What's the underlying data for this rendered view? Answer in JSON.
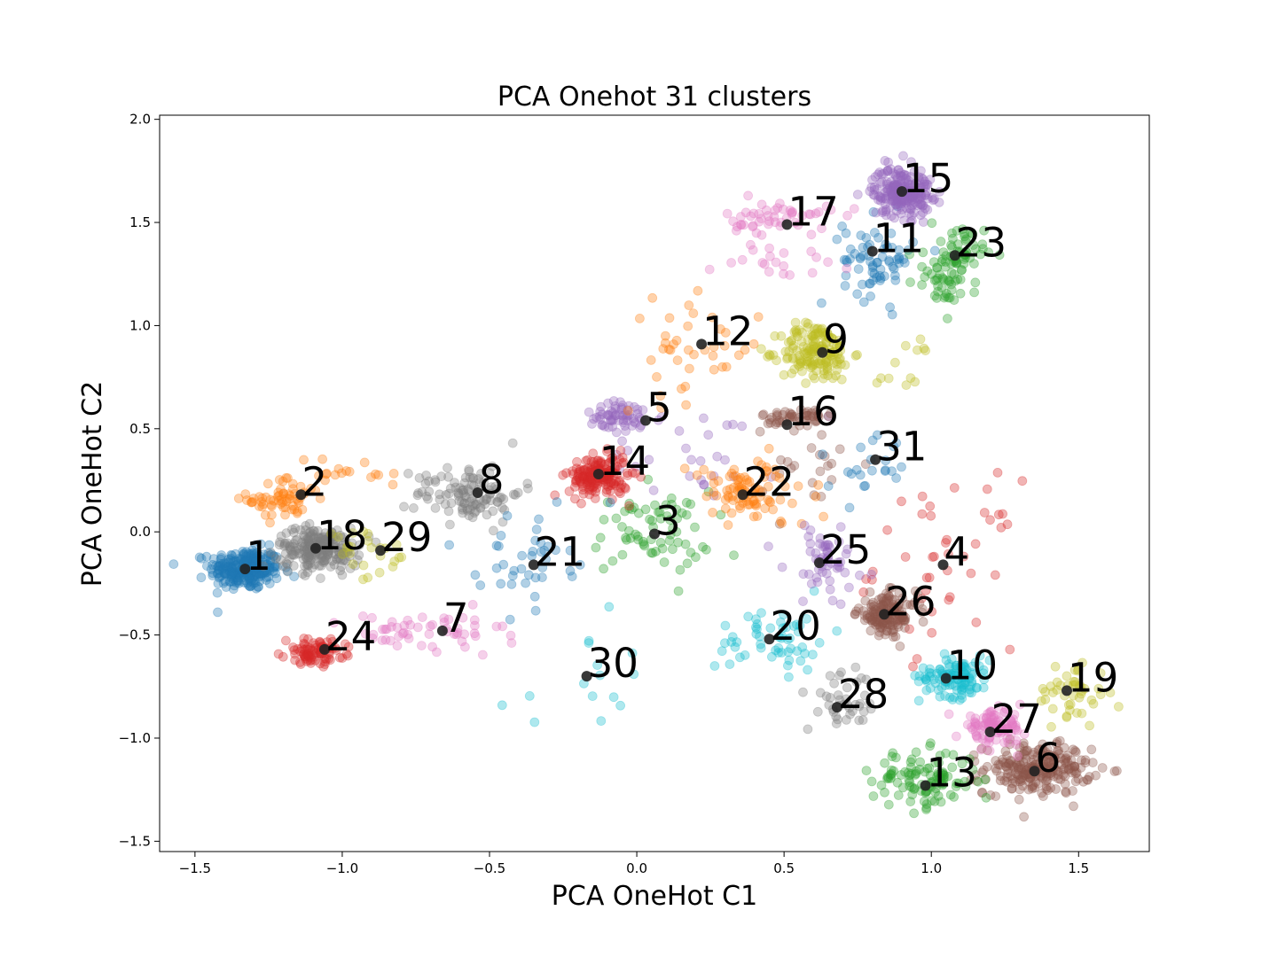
{
  "chart_data": {
    "type": "scatter",
    "title": "PCA Onehot 31 clusters",
    "xlabel": "PCA OneHot C1",
    "ylabel": "PCA OneHot C2",
    "xlim": [
      -1.62,
      1.74
    ],
    "ylim": [
      -1.55,
      2.02
    ],
    "xticks": [
      -1.5,
      -1.0,
      -0.5,
      0.0,
      0.5,
      1.0,
      1.5
    ],
    "xtick_labels": [
      "−1.5",
      "−1.0",
      "−0.5",
      "0.0",
      "0.5",
      "1.0",
      "1.5"
    ],
    "yticks": [
      -1.5,
      -1.0,
      -0.5,
      0.0,
      0.5,
      1.0,
      1.5,
      2.0
    ],
    "ytick_labels": [
      "−1.5",
      "−1.0",
      "−0.5",
      "0.0",
      "0.5",
      "1.0",
      "1.5",
      "2.0"
    ],
    "grid": false,
    "legend": "none",
    "point_alpha": 0.35,
    "centroid_color": "#222222",
    "palette": [
      "#1f77b4",
      "#ff7f0e",
      "#2ca02c",
      "#d62728",
      "#9467bd",
      "#8c564b",
      "#e377c2",
      "#7f7f7f",
      "#bcbd22",
      "#17becf"
    ],
    "centroids": [
      {
        "label": "1",
        "x": -1.33,
        "y": -0.18,
        "color": "#1f77b4"
      },
      {
        "label": "2",
        "x": -1.14,
        "y": 0.18,
        "color": "#ff7f0e"
      },
      {
        "label": "3",
        "x": 0.06,
        "y": -0.01,
        "color": "#2ca02c"
      },
      {
        "label": "4",
        "x": 1.04,
        "y": -0.16,
        "color": "#d62728"
      },
      {
        "label": "5",
        "x": 0.03,
        "y": 0.54,
        "color": "#9467bd"
      },
      {
        "label": "6",
        "x": 1.35,
        "y": -1.16,
        "color": "#8c564b"
      },
      {
        "label": "7",
        "x": -0.66,
        "y": -0.48,
        "color": "#e377c2"
      },
      {
        "label": "8",
        "x": -0.54,
        "y": 0.19,
        "color": "#7f7f7f"
      },
      {
        "label": "9",
        "x": 0.63,
        "y": 0.87,
        "color": "#bcbd22"
      },
      {
        "label": "10",
        "x": 1.05,
        "y": -0.71,
        "color": "#17becf"
      },
      {
        "label": "11",
        "x": 0.8,
        "y": 1.36,
        "color": "#1f77b4"
      },
      {
        "label": "12",
        "x": 0.22,
        "y": 0.91,
        "color": "#ff7f0e"
      },
      {
        "label": "13",
        "x": 0.98,
        "y": -1.23,
        "color": "#2ca02c"
      },
      {
        "label": "14",
        "x": -0.13,
        "y": 0.28,
        "color": "#d62728"
      },
      {
        "label": "15",
        "x": 0.9,
        "y": 1.65,
        "color": "#9467bd"
      },
      {
        "label": "16",
        "x": 0.51,
        "y": 0.52,
        "color": "#8c564b"
      },
      {
        "label": "17",
        "x": 0.51,
        "y": 1.49,
        "color": "#e377c2"
      },
      {
        "label": "18",
        "x": -1.09,
        "y": -0.08,
        "color": "#7f7f7f"
      },
      {
        "label": "19",
        "x": 1.46,
        "y": -0.77,
        "color": "#bcbd22"
      },
      {
        "label": "20",
        "x": 0.45,
        "y": -0.52,
        "color": "#17becf"
      },
      {
        "label": "21",
        "x": -0.35,
        "y": -0.16,
        "color": "#1f77b4"
      },
      {
        "label": "22",
        "x": 0.36,
        "y": 0.18,
        "color": "#ff7f0e"
      },
      {
        "label": "23",
        "x": 1.08,
        "y": 1.34,
        "color": "#2ca02c"
      },
      {
        "label": "24",
        "x": -1.06,
        "y": -0.57,
        "color": "#d62728"
      },
      {
        "label": "25",
        "x": 0.62,
        "y": -0.15,
        "color": "#9467bd"
      },
      {
        "label": "26",
        "x": 0.84,
        "y": -0.4,
        "color": "#8c564b"
      },
      {
        "label": "27",
        "x": 1.2,
        "y": -0.97,
        "color": "#e377c2"
      },
      {
        "label": "28",
        "x": 0.68,
        "y": -0.85,
        "color": "#7f7f7f"
      },
      {
        "label": "29",
        "x": -0.87,
        "y": -0.09,
        "color": "#bcbd22"
      },
      {
        "label": "30",
        "x": -0.17,
        "y": -0.7,
        "color": "#17becf"
      },
      {
        "label": "31",
        "x": 0.81,
        "y": 0.35,
        "color": "#1f77b4"
      }
    ],
    "clusters": [
      {
        "label": "1",
        "color": "#1f77b4",
        "center": [
          -1.33,
          -0.18
        ],
        "spread": [
          0.06,
          0.05
        ],
        "count": 260
      },
      {
        "label": "2",
        "color": "#ff7f0e",
        "center": [
          -1.2,
          0.16
        ],
        "spread": [
          0.06,
          0.05
        ],
        "count": 60
      },
      {
        "label": "2",
        "color": "#ff7f0e",
        "center": [
          -0.98,
          0.28
        ],
        "spread": [
          0.1,
          0.04
        ],
        "count": 20
      },
      {
        "label": "3",
        "color": "#2ca02c",
        "center": [
          0.05,
          0.0
        ],
        "spread": [
          0.1,
          0.1
        ],
        "count": 70
      },
      {
        "label": "4",
        "color": "#d62728",
        "center": [
          1.05,
          -0.15
        ],
        "spread": [
          0.12,
          0.2
        ],
        "count": 45
      },
      {
        "label": "5",
        "color": "#9467bd",
        "center": [
          -0.05,
          0.55
        ],
        "spread": [
          0.07,
          0.04
        ],
        "count": 60
      },
      {
        "label": "5",
        "color": "#9467bd",
        "center": [
          0.2,
          0.4
        ],
        "spread": [
          0.15,
          0.12
        ],
        "count": 30
      },
      {
        "label": "6",
        "color": "#8c564b",
        "center": [
          1.36,
          -1.15
        ],
        "spread": [
          0.09,
          0.06
        ],
        "count": 240
      },
      {
        "label": "7",
        "color": "#e377c2",
        "center": [
          -0.65,
          -0.5
        ],
        "spread": [
          0.1,
          0.06
        ],
        "count": 35
      },
      {
        "label": "7",
        "color": "#e377c2",
        "center": [
          -0.85,
          -0.48
        ],
        "spread": [
          0.07,
          0.04
        ],
        "count": 20
      },
      {
        "label": "8",
        "color": "#7f7f7f",
        "center": [
          -0.57,
          0.19
        ],
        "spread": [
          0.09,
          0.07
        ],
        "count": 110
      },
      {
        "label": "9",
        "color": "#bcbd22",
        "center": [
          0.61,
          0.87
        ],
        "spread": [
          0.06,
          0.07
        ],
        "count": 160
      },
      {
        "label": "9",
        "color": "#bcbd22",
        "center": [
          0.92,
          0.8
        ],
        "spread": [
          0.06,
          0.08
        ],
        "count": 12
      },
      {
        "label": "10",
        "color": "#17becf",
        "center": [
          1.08,
          -0.7
        ],
        "spread": [
          0.06,
          0.05
        ],
        "count": 110
      },
      {
        "label": "11",
        "color": "#1f77b4",
        "center": [
          0.82,
          1.32
        ],
        "spread": [
          0.06,
          0.1
        ],
        "count": 70
      },
      {
        "label": "12",
        "color": "#ff7f0e",
        "center": [
          0.18,
          0.88
        ],
        "spread": [
          0.12,
          0.12
        ],
        "count": 40
      },
      {
        "label": "13",
        "color": "#2ca02c",
        "center": [
          0.98,
          -1.2
        ],
        "spread": [
          0.09,
          0.07
        ],
        "count": 110
      },
      {
        "label": "14",
        "color": "#d62728",
        "center": [
          -0.13,
          0.27
        ],
        "spread": [
          0.05,
          0.05
        ],
        "count": 170
      },
      {
        "label": "15",
        "color": "#9467bd",
        "center": [
          0.9,
          1.65
        ],
        "spread": [
          0.05,
          0.06
        ],
        "count": 220
      },
      {
        "label": "16",
        "color": "#8c564b",
        "center": [
          0.55,
          0.55
        ],
        "spread": [
          0.06,
          0.03
        ],
        "count": 50
      },
      {
        "label": "16",
        "color": "#8c564b",
        "center": [
          0.58,
          0.3
        ],
        "spread": [
          0.08,
          0.1
        ],
        "count": 20
      },
      {
        "label": "17",
        "color": "#e377c2",
        "center": [
          0.48,
          1.52
        ],
        "spread": [
          0.09,
          0.04
        ],
        "count": 50
      },
      {
        "label": "17",
        "color": "#e377c2",
        "center": [
          0.48,
          1.33
        ],
        "spread": [
          0.1,
          0.07
        ],
        "count": 20
      },
      {
        "label": "18",
        "color": "#7f7f7f",
        "center": [
          -1.08,
          -0.08
        ],
        "spread": [
          0.07,
          0.05
        ],
        "count": 220
      },
      {
        "label": "19",
        "color": "#bcbd22",
        "center": [
          1.48,
          -0.78
        ],
        "spread": [
          0.06,
          0.08
        ],
        "count": 45
      },
      {
        "label": "20",
        "color": "#17becf",
        "center": [
          0.47,
          -0.52
        ],
        "spread": [
          0.1,
          0.08
        ],
        "count": 55
      },
      {
        "label": "21",
        "color": "#1f77b4",
        "center": [
          -0.38,
          -0.12
        ],
        "spread": [
          0.08,
          0.12
        ],
        "count": 40
      },
      {
        "label": "22",
        "color": "#ff7f0e",
        "center": [
          0.38,
          0.18
        ],
        "spread": [
          0.1,
          0.08
        ],
        "count": 90
      },
      {
        "label": "23",
        "color": "#2ca02c",
        "center": [
          1.08,
          1.33
        ],
        "spread": [
          0.05,
          0.07
        ],
        "count": 70
      },
      {
        "label": "23",
        "color": "#2ca02c",
        "center": [
          1.05,
          1.18
        ],
        "spread": [
          0.06,
          0.06
        ],
        "count": 25
      },
      {
        "label": "24",
        "color": "#d62728",
        "center": [
          -1.09,
          -0.58
        ],
        "spread": [
          0.05,
          0.03
        ],
        "count": 90
      },
      {
        "label": "25",
        "color": "#9467bd",
        "center": [
          0.64,
          -0.15
        ],
        "spread": [
          0.07,
          0.1
        ],
        "count": 55
      },
      {
        "label": "26",
        "color": "#8c564b",
        "center": [
          0.85,
          -0.4
        ],
        "spread": [
          0.05,
          0.05
        ],
        "count": 150
      },
      {
        "label": "27",
        "color": "#e377c2",
        "center": [
          1.21,
          -0.95
        ],
        "spread": [
          0.05,
          0.04
        ],
        "count": 100
      },
      {
        "label": "28",
        "color": "#7f7f7f",
        "center": [
          0.7,
          -0.83
        ],
        "spread": [
          0.06,
          0.07
        ],
        "count": 40
      },
      {
        "label": "29",
        "color": "#bcbd22",
        "center": [
          -0.9,
          -0.12
        ],
        "spread": [
          0.08,
          0.06
        ],
        "count": 25
      },
      {
        "label": "30",
        "color": "#17becf",
        "center": [
          -0.15,
          -0.72
        ],
        "spread": [
          0.15,
          0.12
        ],
        "count": 15
      },
      {
        "label": "31",
        "color": "#1f77b4",
        "center": [
          0.79,
          0.3
        ],
        "spread": [
          0.06,
          0.08
        ],
        "count": 22
      }
    ]
  }
}
